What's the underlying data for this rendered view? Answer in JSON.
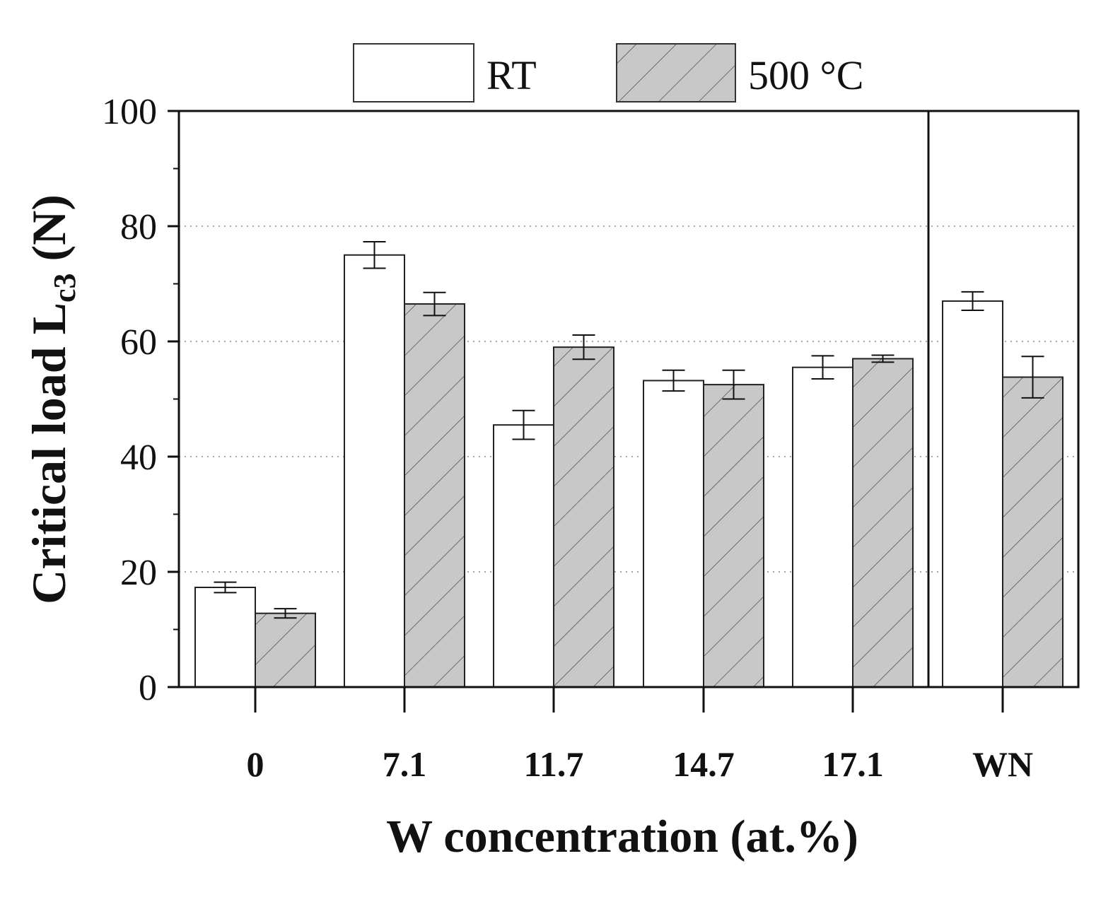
{
  "chart_data": {
    "type": "bar",
    "categories": [
      "0",
      "7.1",
      "11.7",
      "14.7",
      "17.1",
      "WN"
    ],
    "series": [
      {
        "name": "RT",
        "values": [
          17.3,
          75.0,
          45.5,
          53.2,
          55.5,
          67.0
        ],
        "errors": [
          0.9,
          2.3,
          2.5,
          1.8,
          2.0,
          1.6
        ],
        "color": "#ffffff",
        "pattern": "none"
      },
      {
        "name": "500 °C",
        "values": [
          12.8,
          66.5,
          59.0,
          52.5,
          57.0,
          53.8
        ],
        "errors": [
          0.8,
          2.0,
          2.1,
          2.5,
          0.6,
          3.6
        ],
        "color": "#c8c8c8",
        "pattern": "diagonal-hatch"
      }
    ],
    "xlabel": "W concentration  (at.%)",
    "ylabel_main": "Critical load L",
    "ylabel_sub": "c3",
    "ylabel_unit": " (N)",
    "ylim": [
      0,
      100
    ],
    "yticks": [
      0,
      20,
      40,
      60,
      80,
      100
    ],
    "grid": "horizontal dotted",
    "legend_position": "top",
    "separator_after_category": "17.1"
  }
}
